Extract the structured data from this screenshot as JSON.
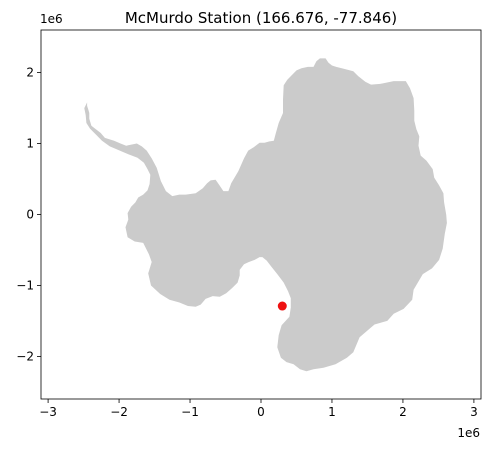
{
  "title": "McMurdo Station (166.676, -77.846)",
  "x_offset_label": "1e6",
  "y_offset_label": "1e6",
  "colors": {
    "land": "#cbcbcb",
    "marker": "#ee1111",
    "axes": "#000000",
    "background": "#ffffff"
  },
  "chart_data": {
    "type": "scatter",
    "title": "McMurdo Station (166.676, -77.846)",
    "xlabel": "",
    "ylabel": "",
    "xlim": [
      -3100000,
      3100000
    ],
    "ylim": [
      -2600000,
      2600000
    ],
    "x_ticks": [
      {
        "value": -3000000,
        "label": "−3"
      },
      {
        "value": -2000000,
        "label": "−2"
      },
      {
        "value": -1000000,
        "label": "−1"
      },
      {
        "value": 0,
        "label": "0"
      },
      {
        "value": 1000000,
        "label": "1"
      },
      {
        "value": 2000000,
        "label": "2"
      },
      {
        "value": 3000000,
        "label": "3"
      }
    ],
    "y_ticks": [
      {
        "value": 2000000,
        "label": "2"
      },
      {
        "value": 1000000,
        "label": "1"
      },
      {
        "value": 0,
        "label": "0"
      },
      {
        "value": -1000000,
        "label": "−1"
      },
      {
        "value": -2000000,
        "label": "−2"
      }
    ],
    "grid": false,
    "point": {
      "x": 300000,
      "y": -1290000
    }
  },
  "coastline": [
    [
      -2450000,
      1580000
    ],
    [
      -2450000,
      1530000
    ],
    [
      -2430000,
      1470000
    ],
    [
      -2420000,
      1430000
    ],
    [
      -2420000,
      1350000
    ],
    [
      -2390000,
      1250000
    ],
    [
      -2260000,
      1150000
    ],
    [
      -2200000,
      1080000
    ],
    [
      -2070000,
      1040000
    ],
    [
      -1980000,
      1000000
    ],
    [
      -1900000,
      970000
    ],
    [
      -1750000,
      1000000
    ],
    [
      -1680000,
      960000
    ],
    [
      -1610000,
      900000
    ],
    [
      -1540000,
      790000
    ],
    [
      -1470000,
      660000
    ],
    [
      -1410000,
      470000
    ],
    [
      -1340000,
      330000
    ],
    [
      -1250000,
      260000
    ],
    [
      -1150000,
      280000
    ],
    [
      -1060000,
      280000
    ],
    [
      -920000,
      300000
    ],
    [
      -820000,
      370000
    ],
    [
      -760000,
      440000
    ],
    [
      -710000,
      480000
    ],
    [
      -640000,
      490000
    ],
    [
      -590000,
      420000
    ],
    [
      -530000,
      330000
    ],
    [
      -460000,
      330000
    ],
    [
      -420000,
      440000
    ],
    [
      -320000,
      610000
    ],
    [
      -240000,
      790000
    ],
    [
      -180000,
      900000
    ],
    [
      -100000,
      950000
    ],
    [
      -20000,
      1010000
    ],
    [
      50000,
      1010000
    ],
    [
      120000,
      1030000
    ],
    [
      180000,
      1040000
    ],
    [
      210000,
      1150000
    ],
    [
      250000,
      1290000
    ],
    [
      310000,
      1430000
    ],
    [
      310000,
      1620000
    ],
    [
      320000,
      1820000
    ],
    [
      370000,
      1900000
    ],
    [
      440000,
      1970000
    ],
    [
      500000,
      2030000
    ],
    [
      570000,
      2060000
    ],
    [
      660000,
      2080000
    ],
    [
      740000,
      2080000
    ],
    [
      780000,
      2160000
    ],
    [
      830000,
      2200000
    ],
    [
      910000,
      2200000
    ],
    [
      950000,
      2140000
    ],
    [
      1000000,
      2100000
    ],
    [
      1060000,
      2080000
    ],
    [
      1180000,
      2050000
    ],
    [
      1300000,
      2020000
    ],
    [
      1370000,
      1950000
    ],
    [
      1470000,
      1870000
    ],
    [
      1550000,
      1830000
    ],
    [
      1680000,
      1840000
    ],
    [
      1870000,
      1880000
    ],
    [
      2040000,
      1880000
    ],
    [
      2100000,
      1780000
    ],
    [
      2150000,
      1640000
    ],
    [
      2160000,
      1460000
    ],
    [
      2160000,
      1320000
    ],
    [
      2190000,
      1200000
    ],
    [
      2230000,
      1100000
    ],
    [
      2220000,
      970000
    ],
    [
      2250000,
      830000
    ],
    [
      2330000,
      760000
    ],
    [
      2420000,
      640000
    ],
    [
      2440000,
      520000
    ],
    [
      2510000,
      410000
    ],
    [
      2570000,
      300000
    ],
    [
      2580000,
      170000
    ],
    [
      2610000,
      0
    ],
    [
      2620000,
      -120000
    ],
    [
      2590000,
      -270000
    ],
    [
      2560000,
      -480000
    ],
    [
      2510000,
      -640000
    ],
    [
      2410000,
      -760000
    ],
    [
      2280000,
      -840000
    ],
    [
      2210000,
      -960000
    ],
    [
      2150000,
      -1060000
    ],
    [
      2130000,
      -1200000
    ],
    [
      2010000,
      -1330000
    ],
    [
      1870000,
      -1400000
    ],
    [
      1780000,
      -1500000
    ],
    [
      1600000,
      -1550000
    ],
    [
      1390000,
      -1730000
    ],
    [
      1300000,
      -1940000
    ],
    [
      1210000,
      -2020000
    ],
    [
      1050000,
      -2110000
    ],
    [
      880000,
      -2160000
    ],
    [
      740000,
      -2180000
    ],
    [
      640000,
      -2210000
    ],
    [
      550000,
      -2180000
    ],
    [
      460000,
      -2110000
    ],
    [
      360000,
      -2080000
    ],
    [
      280000,
      -2020000
    ],
    [
      230000,
      -1870000
    ],
    [
      250000,
      -1700000
    ],
    [
      290000,
      -1560000
    ],
    [
      400000,
      -1440000
    ],
    [
      420000,
      -1310000
    ],
    [
      420000,
      -1180000
    ],
    [
      380000,
      -1080000
    ],
    [
      320000,
      -960000
    ],
    [
      230000,
      -840000
    ],
    [
      150000,
      -740000
    ],
    [
      80000,
      -650000
    ],
    [
      20000,
      -600000
    ],
    [
      -20000,
      -600000
    ],
    [
      -90000,
      -640000
    ],
    [
      -170000,
      -670000
    ],
    [
      -240000,
      -700000
    ],
    [
      -300000,
      -780000
    ],
    [
      -300000,
      -860000
    ],
    [
      -330000,
      -960000
    ],
    [
      -410000,
      -1040000
    ],
    [
      -490000,
      -1110000
    ],
    [
      -580000,
      -1160000
    ],
    [
      -680000,
      -1150000
    ],
    [
      -780000,
      -1190000
    ],
    [
      -850000,
      -1270000
    ],
    [
      -920000,
      -1300000
    ],
    [
      -1030000,
      -1290000
    ],
    [
      -1150000,
      -1240000
    ],
    [
      -1290000,
      -1200000
    ],
    [
      -1420000,
      -1120000
    ],
    [
      -1550000,
      -1000000
    ],
    [
      -1590000,
      -830000
    ],
    [
      -1540000,
      -670000
    ],
    [
      -1580000,
      -560000
    ],
    [
      -1660000,
      -400000
    ],
    [
      -1780000,
      -380000
    ],
    [
      -1880000,
      -320000
    ],
    [
      -1910000,
      -180000
    ],
    [
      -1870000,
      -70000
    ],
    [
      -1880000,
      20000
    ],
    [
      -1830000,
      110000
    ],
    [
      -1770000,
      170000
    ],
    [
      -1730000,
      240000
    ],
    [
      -1660000,
      280000
    ],
    [
      -1600000,
      340000
    ],
    [
      -1570000,
      430000
    ],
    [
      -1560000,
      560000
    ],
    [
      -1600000,
      640000
    ],
    [
      -1650000,
      730000
    ],
    [
      -1740000,
      800000
    ],
    [
      -1870000,
      850000
    ],
    [
      -1990000,
      900000
    ],
    [
      -2130000,
      960000
    ],
    [
      -2240000,
      1040000
    ],
    [
      -2330000,
      1130000
    ],
    [
      -2410000,
      1210000
    ],
    [
      -2460000,
      1290000
    ],
    [
      -2470000,
      1400000
    ],
    [
      -2490000,
      1500000
    ]
  ]
}
